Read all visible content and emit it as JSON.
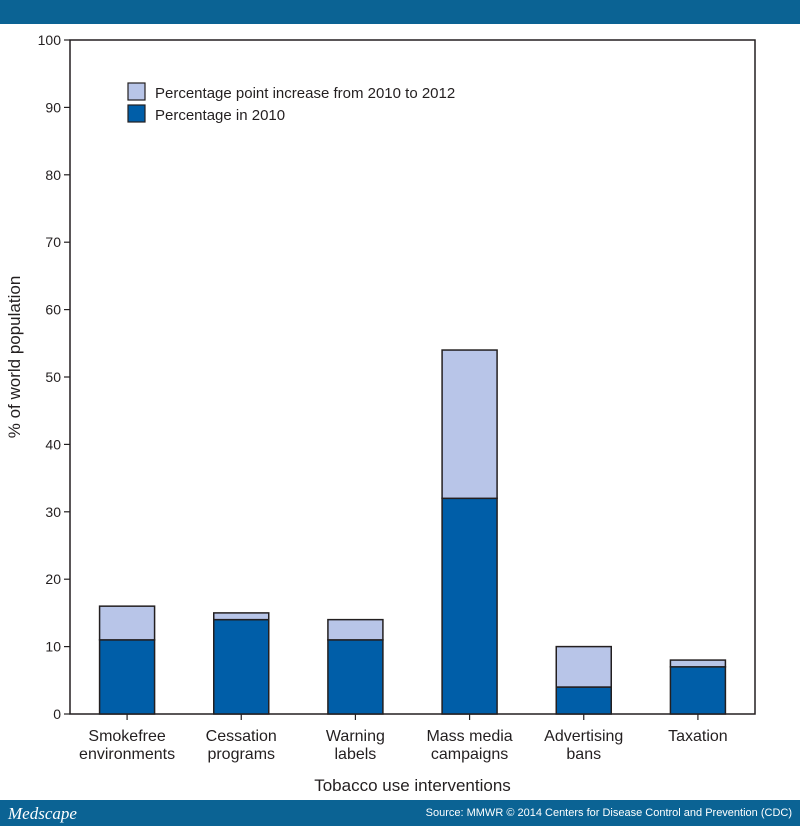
{
  "footer": {
    "logo": "Medscape",
    "source": "Source: MMWR © 2014 Centers for Disease Control and Prevention (CDC)"
  },
  "colors": {
    "brand_bar": "#0b6394",
    "series_2010": "#005ea8",
    "series_increase": "#b8c5e8"
  },
  "chart_data": {
    "type": "bar",
    "stacked": true,
    "categories": [
      [
        "Smokefree",
        "environments"
      ],
      [
        "Cessation",
        "programs"
      ],
      [
        "Warning",
        "labels"
      ],
      [
        "Mass media",
        "campaigns"
      ],
      [
        "Advertising",
        "bans"
      ],
      [
        "Taxation"
      ]
    ],
    "series": [
      {
        "name": "Percentage in 2010",
        "values": [
          11,
          14,
          11,
          32,
          4,
          7
        ]
      },
      {
        "name": "Percentage point increase from 2010 to 2012",
        "values": [
          5,
          1,
          3,
          22,
          6,
          1
        ]
      }
    ],
    "legend": [
      "Percentage point increase from 2010 to 2012",
      "Percentage in 2010"
    ],
    "legend_position": "top-left",
    "xlabel": "Tobacco use interventions",
    "ylabel": "% of world population",
    "ylim": [
      0,
      100
    ],
    "yticks": [
      0,
      10,
      20,
      30,
      40,
      50,
      60,
      70,
      80,
      90,
      100
    ],
    "grid": false
  }
}
